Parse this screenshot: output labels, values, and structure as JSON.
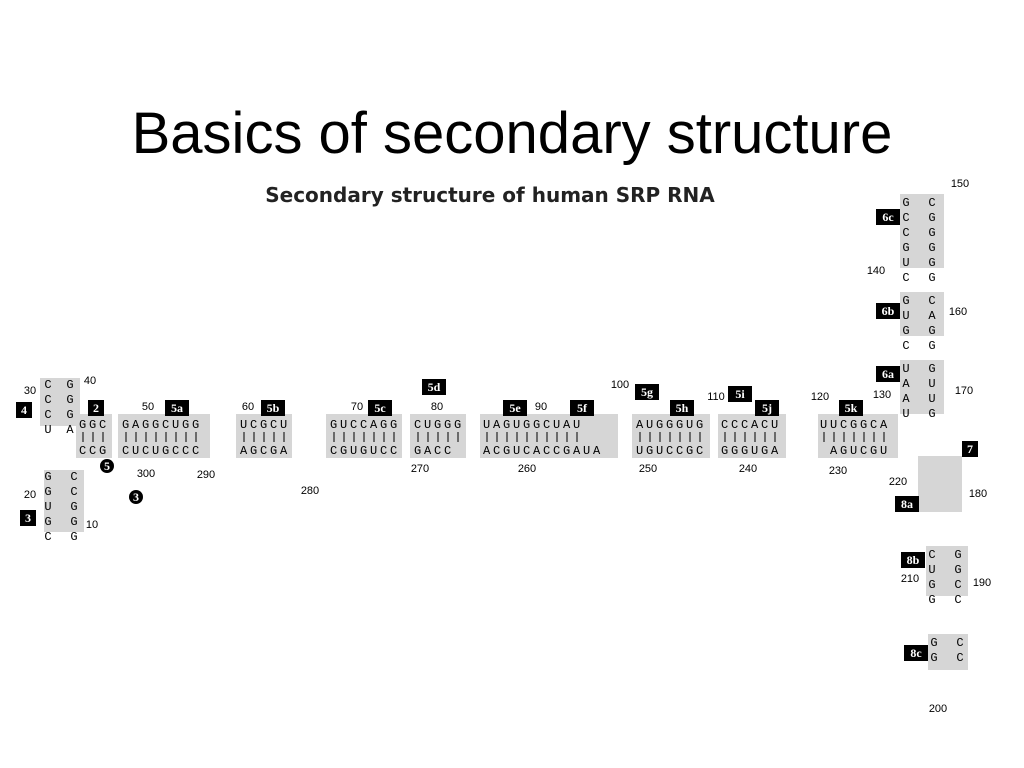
{
  "slide": {
    "title": "Basics of secondary structure"
  },
  "figure": {
    "title": "Secondary structure of human SRP RNA",
    "helix_labels": [
      "4",
      "3",
      "2",
      "5",
      "3",
      "5a",
      "5b",
      "5c",
      "5d",
      "5e",
      "5f",
      "5g",
      "5h",
      "5i",
      "5j",
      "5k",
      "6a",
      "6b",
      "6c",
      "7",
      "8a",
      "8b",
      "8c"
    ],
    "position_numbers": [
      "10",
      "20",
      "30",
      "40",
      "50",
      "60",
      "70",
      "80",
      "90",
      "100",
      "110",
      "120",
      "130",
      "140",
      "150",
      "160",
      "170",
      "180",
      "190",
      "200",
      "210",
      "220",
      "230",
      "240",
      "250",
      "260",
      "270",
      "280",
      "290",
      "300"
    ],
    "top_strands": [
      "GGC",
      "GAGGCUGG",
      "UCGCU",
      "GUCCAGG",
      "CUGGG",
      "UAGUGGCUAU",
      "AUGGGUG",
      "CCCACU",
      "UUCGGCA"
    ],
    "bottom_strands": [
      "CCG",
      "CUCUGCCC",
      "AGCGA",
      "CGUGUCC",
      "GACC",
      "ACGUCACCGAUA",
      "UGUCCGC",
      "GGGUGA",
      "AGUCGU"
    ],
    "vertical_strands": [
      "CCCU",
      "GGGA",
      "GGUGC",
      "CCGGG",
      "GCCGUC",
      "CGGGGG",
      "GUGC",
      "CAGG",
      "UAAU",
      "GUUG",
      "CUGG",
      "GGCC",
      "GG",
      "CC"
    ]
  }
}
